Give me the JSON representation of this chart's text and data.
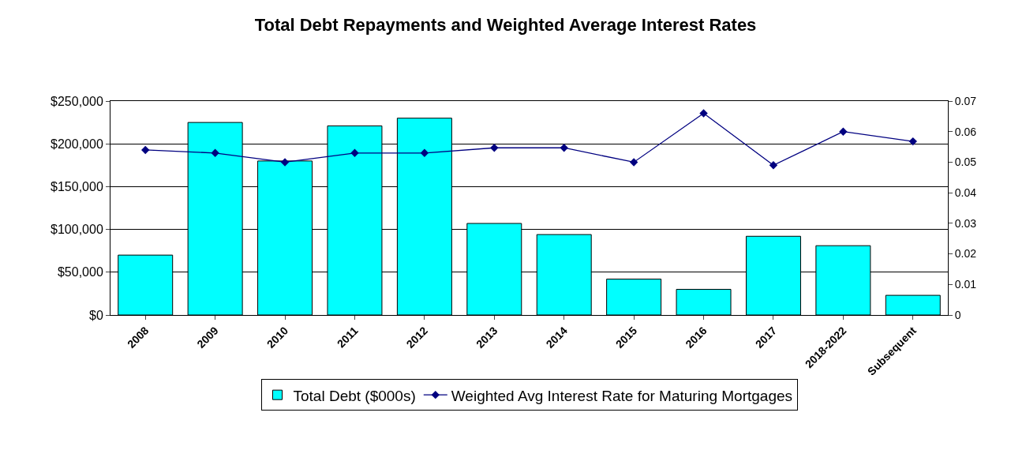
{
  "chart_data": {
    "type": "bar",
    "title": "Total Debt Repayments and Weighted Average Interest Rates",
    "categories": [
      "2008",
      "2009",
      "2010",
      "2011",
      "2012",
      "2013",
      "2014",
      "2015",
      "2016",
      "2017",
      "2018-2022",
      "Subsequent"
    ],
    "series": [
      {
        "name": "Total Debt ($000s)",
        "color": "#00ffff",
        "values": [
          70000,
          225000,
          180000,
          221000,
          230000,
          107000,
          94000,
          42000,
          30000,
          92000,
          81000,
          23000
        ]
      },
      {
        "name": "Weighted Avg Interest Rate for Maturing Mortgages",
        "type": "line",
        "axis": "y2",
        "color": "#000080",
        "marker": "diamond",
        "values": [
          0.054,
          0.053,
          0.05,
          0.053,
          0.053,
          0.0547,
          0.0547,
          0.05,
          0.066,
          0.049,
          0.06,
          0.0568
        ]
      }
    ],
    "ylim": [
      0,
      250000
    ],
    "yticks": [
      {
        "value": 0,
        "label": "$0"
      },
      {
        "value": 50000,
        "label": "$50,000"
      },
      {
        "value": 100000,
        "label": "$100,000"
      },
      {
        "value": 150000,
        "label": "$150,000"
      },
      {
        "value": 200000,
        "label": "$200,000"
      },
      {
        "value": 250000,
        "label": "$250,000"
      }
    ],
    "y2lim": [
      0,
      0.07
    ],
    "y2ticks": [
      0,
      0.01,
      0.02,
      0.03,
      0.04,
      0.05,
      0.06,
      0.07
    ],
    "grid": "y",
    "legend": "bottom"
  }
}
